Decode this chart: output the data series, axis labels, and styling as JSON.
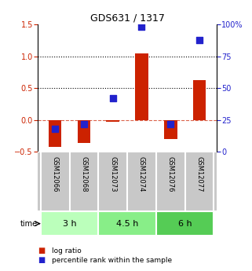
{
  "title": "GDS631 / 1317",
  "samples": [
    "GSM12066",
    "GSM12068",
    "GSM12073",
    "GSM12074",
    "GSM12076",
    "GSM12077"
  ],
  "log_ratio": [
    -0.42,
    -0.36,
    -0.03,
    1.05,
    -0.3,
    0.63
  ],
  "percentile_rank": [
    0.18,
    0.22,
    0.42,
    0.98,
    0.22,
    0.88
  ],
  "time_groups": [
    {
      "label": "3 h",
      "color": "#bbffbb",
      "start": 0,
      "end": 2
    },
    {
      "label": "4.5 h",
      "color": "#88ee88",
      "start": 2,
      "end": 4
    },
    {
      "label": "6 h",
      "color": "#55cc55",
      "start": 4,
      "end": 6
    }
  ],
  "ylim": [
    -0.5,
    1.5
  ],
  "yticks_left": [
    -0.5,
    0.0,
    0.5,
    1.0,
    1.5
  ],
  "yticks_right": [
    0,
    25,
    50,
    75,
    100
  ],
  "hlines": [
    0.5,
    1.0
  ],
  "dashed_line": 0.0,
  "bar_color": "#cc2200",
  "dot_color": "#2222cc",
  "background_color": "#ffffff",
  "label_log_ratio": "log ratio",
  "label_percentile": "percentile rank within the sample",
  "bar_width": 0.45,
  "dot_size": 35,
  "label_color_gray": "#c0c0c0"
}
